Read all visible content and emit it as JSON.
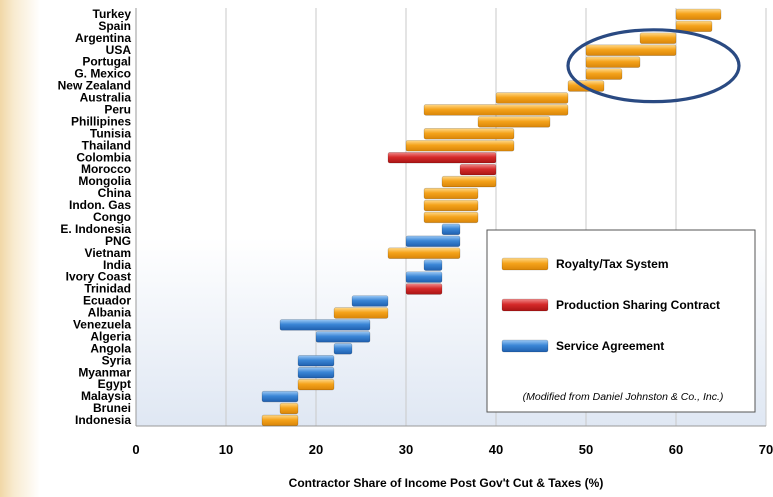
{
  "chart_data": {
    "type": "bar",
    "subtype": "floating-horizontal-range",
    "xlabel": "Contractor Share of Income Post Gov't Cut & Taxes (%)",
    "xlim": [
      0,
      70
    ],
    "xticks": [
      0,
      10,
      20,
      30,
      40,
      50,
      60,
      70
    ],
    "grid": "vertical",
    "legend_position": "lower-right",
    "legend": [
      {
        "key": "royalty",
        "label": "Royalty/Tax System",
        "color": "#f5a31b"
      },
      {
        "key": "psc",
        "label": "Production Sharing Contract",
        "color": "#d62a2a"
      },
      {
        "key": "service",
        "label": "Service Agreement",
        "color": "#3b86d6"
      }
    ],
    "note": "(Modified from  Daniel Johnston & Co., Inc.)",
    "categories": [
      "Turkey",
      "Spain",
      "Argentina",
      "USA",
      "Portugal",
      "G. Mexico",
      "New Zealand",
      "Australia",
      "Peru",
      "Phillipines",
      "Tunisia",
      "Thailand",
      "Colombia",
      "Morocco",
      "Mongolia",
      "China",
      "Indon. Gas",
      "Congo",
      "E. Indonesia",
      "PNG",
      "Vietnam",
      "India",
      "Ivory Coast",
      "Trinidad",
      "Ecuador",
      "Albania",
      "Venezuela",
      "Algeria",
      "Angola",
      "Syria",
      "Myanmar",
      "Egypt",
      "Malaysia",
      "Brunei",
      "Indonesia"
    ],
    "bars": [
      {
        "category": "Turkey",
        "system": "royalty",
        "low": 60,
        "high": 65
      },
      {
        "category": "Spain",
        "system": "royalty",
        "low": 60,
        "high": 64
      },
      {
        "category": "Argentina",
        "system": "royalty",
        "low": 56,
        "high": 60
      },
      {
        "category": "USA",
        "system": "royalty",
        "low": 50,
        "high": 60
      },
      {
        "category": "Portugal",
        "system": "royalty",
        "low": 50,
        "high": 56
      },
      {
        "category": "G. Mexico",
        "system": "royalty",
        "low": 50,
        "high": 54
      },
      {
        "category": "New Zealand",
        "system": "royalty",
        "low": 48,
        "high": 52
      },
      {
        "category": "Australia",
        "system": "royalty",
        "low": 40,
        "high": 48
      },
      {
        "category": "Peru",
        "system": "royalty",
        "low": 32,
        "high": 48
      },
      {
        "category": "Phillipines",
        "system": "royalty",
        "low": 38,
        "high": 46
      },
      {
        "category": "Tunisia",
        "system": "royalty",
        "low": 32,
        "high": 42
      },
      {
        "category": "Thailand",
        "system": "royalty",
        "low": 30,
        "high": 42
      },
      {
        "category": "Colombia",
        "system": "psc",
        "low": 28,
        "high": 40
      },
      {
        "category": "Morocco",
        "system": "psc",
        "low": 36,
        "high": 40
      },
      {
        "category": "Mongolia",
        "system": "royalty",
        "low": 34,
        "high": 40
      },
      {
        "category": "China",
        "system": "royalty",
        "low": 32,
        "high": 38
      },
      {
        "category": "Indon. Gas",
        "system": "royalty",
        "low": 32,
        "high": 38
      },
      {
        "category": "Congo",
        "system": "royalty",
        "low": 32,
        "high": 38
      },
      {
        "category": "E. Indonesia",
        "system": "service",
        "low": 34,
        "high": 36
      },
      {
        "category": "PNG",
        "system": "service",
        "low": 30,
        "high": 36
      },
      {
        "category": "Vietnam",
        "system": "royalty",
        "low": 28,
        "high": 36
      },
      {
        "category": "India",
        "system": "service",
        "low": 32,
        "high": 34
      },
      {
        "category": "Ivory Coast",
        "system": "service",
        "low": 30,
        "high": 34
      },
      {
        "category": "Trinidad",
        "system": "psc",
        "low": 30,
        "high": 34
      },
      {
        "category": "Ecuador",
        "system": "service",
        "low": 24,
        "high": 28
      },
      {
        "category": "Albania",
        "system": "royalty",
        "low": 22,
        "high": 28
      },
      {
        "category": "Venezuela",
        "system": "service",
        "low": 16,
        "high": 26
      },
      {
        "category": "Algeria",
        "system": "service",
        "low": 20,
        "high": 26
      },
      {
        "category": "Angola",
        "system": "service",
        "low": 22,
        "high": 24
      },
      {
        "category": "Syria",
        "system": "service",
        "low": 18,
        "high": 22
      },
      {
        "category": "Myanmar",
        "system": "service",
        "low": 18,
        "high": 22
      },
      {
        "category": "Egypt",
        "system": "royalty",
        "low": 18,
        "high": 22
      },
      {
        "category": "Malaysia",
        "system": "service",
        "low": 14,
        "high": 18
      },
      {
        "category": "Brunei",
        "system": "royalty",
        "low": 16,
        "high": 18
      },
      {
        "category": "Indonesia",
        "system": "royalty",
        "low": 14,
        "high": 18
      }
    ],
    "highlight_ellipse": {
      "x_range": [
        48,
        67
      ],
      "categories": [
        "USA",
        "G. Mexico"
      ],
      "color": "#2a4a82"
    }
  }
}
